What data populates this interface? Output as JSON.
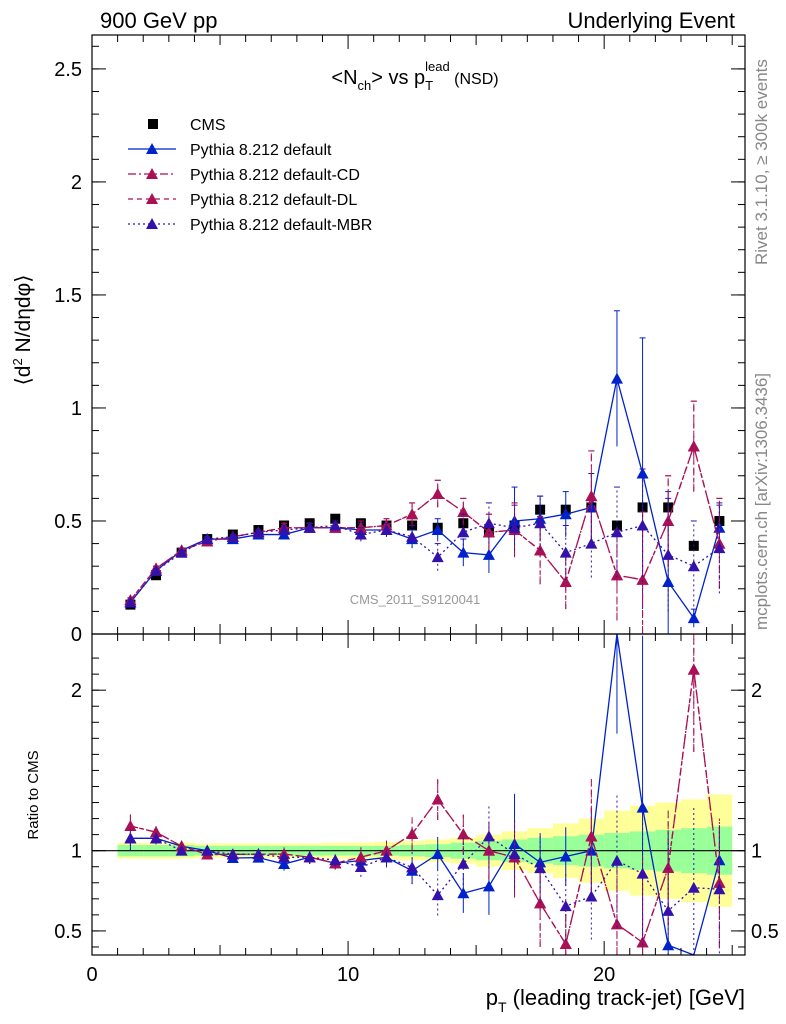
{
  "header": {
    "left": "900 GeV pp",
    "right": "Underlying Event"
  },
  "side_labels": {
    "rivet": "Rivet 3.1.10, ≥ 300k events",
    "mcplots": "mcplots.cern.ch [arXiv:1306.3436]"
  },
  "watermark": "CMS_2011_S9120041",
  "chart_data": {
    "type": "scatter",
    "title_parts": {
      "a": "<N",
      "a_sub": "ch",
      "b": "> vs p",
      "b_sub": "T",
      "b_sup": "lead",
      "c": " (NSD)"
    },
    "ylabel_parts": {
      "a": "⟨d",
      "sup": "2",
      "b": " N/dηdφ⟩"
    },
    "xlabel_parts": {
      "a": "p",
      "sub": "T",
      "b": " (leading track-jet) [GeV]"
    },
    "ratio_ylabel": "Ratio to CMS",
    "xlim": [
      0,
      25.5
    ],
    "ylim": [
      0,
      2.65
    ],
    "ratio_ylim": [
      0.35,
      2.35
    ],
    "x_ticks": [
      0,
      10,
      20
    ],
    "y_ticks": [
      0,
      0.5,
      1,
      1.5,
      2,
      2.5
    ],
    "y_tick_labels": [
      "0",
      "0.5",
      "1",
      "1.5",
      "2",
      "2.5"
    ],
    "ratio_ticks": [
      0.5,
      1,
      2
    ],
    "ratio_tick_labels": [
      "0.5",
      "1",
      "2"
    ],
    "legend_position": "top-left",
    "x": [
      1.5,
      2.5,
      3.5,
      4.5,
      5.5,
      6.5,
      7.5,
      8.5,
      9.5,
      10.5,
      11.5,
      12.5,
      13.5,
      14.5,
      15.5,
      16.5,
      17.5,
      18.5,
      19.5,
      20.5,
      21.5,
      22.5,
      23.5,
      24.5
    ],
    "data": {
      "name": "CMS",
      "values": [
        0.13,
        0.26,
        0.36,
        0.42,
        0.44,
        0.46,
        0.48,
        0.49,
        0.51,
        0.49,
        0.48,
        0.48,
        0.47,
        0.49,
        0.45,
        0.48,
        0.55,
        0.55,
        0.56,
        0.48,
        0.56,
        0.56,
        0.39,
        0.5
      ],
      "band_inner": [
        0.035,
        0.035,
        0.035,
        0.03,
        0.03,
        0.03,
        0.03,
        0.03,
        0.03,
        0.03,
        0.03,
        0.035,
        0.04,
        0.05,
        0.06,
        0.07,
        0.08,
        0.09,
        0.1,
        0.11,
        0.12,
        0.13,
        0.14,
        0.15
      ],
      "band_outer": [
        0.05,
        0.05,
        0.05,
        0.045,
        0.045,
        0.045,
        0.045,
        0.045,
        0.05,
        0.05,
        0.055,
        0.06,
        0.07,
        0.08,
        0.1,
        0.12,
        0.14,
        0.17,
        0.2,
        0.25,
        0.28,
        0.3,
        0.32,
        0.35
      ]
    },
    "series": [
      {
        "name": "Pythia 8.212 default",
        "color": "#0022cc",
        "dash": "",
        "values": [
          0.14,
          0.28,
          0.37,
          0.42,
          0.42,
          0.44,
          0.44,
          0.47,
          0.47,
          0.46,
          0.46,
          0.42,
          0.46,
          0.36,
          0.35,
          0.5,
          0.51,
          0.53,
          0.56,
          1.13,
          0.71,
          0.23,
          0.07,
          0.47
        ],
        "errors": [
          0.01,
          0.01,
          0.01,
          0.01,
          0.01,
          0.01,
          0.02,
          0.02,
          0.02,
          0.03,
          0.03,
          0.04,
          0.05,
          0.06,
          0.08,
          0.15,
          0.1,
          0.1,
          0.15,
          0.3,
          0.6,
          0.4,
          0.04,
          0.1
        ]
      },
      {
        "name": "Pythia 8.212 default-CD",
        "color": "#aa1155",
        "dash": "8,3,2,3",
        "values": [
          0.15,
          0.29,
          0.37,
          0.41,
          0.43,
          0.45,
          0.47,
          0.47,
          0.47,
          0.47,
          0.48,
          0.53,
          0.62,
          0.54,
          0.45,
          0.46,
          0.37,
          0.23,
          0.61,
          0.26,
          0.24,
          0.5,
          0.83,
          0.4
        ],
        "errors": [
          0.01,
          0.01,
          0.01,
          0.01,
          0.01,
          0.01,
          0.02,
          0.02,
          0.02,
          0.03,
          0.03,
          0.05,
          0.06,
          0.06,
          0.08,
          0.12,
          0.15,
          0.12,
          0.2,
          0.2,
          0.3,
          0.2,
          0.2,
          0.2
        ]
      },
      {
        "name": "Pythia 8.212 default-DL",
        "color": "#aa1155",
        "dash": "5,4",
        "values": [
          0.15,
          0.29,
          0.37,
          0.41,
          0.43,
          0.45,
          0.47,
          0.47,
          0.47,
          0.47,
          0.48,
          0.53,
          0.62,
          0.54,
          0.45,
          0.46,
          0.37,
          0.23,
          0.61,
          0.26,
          0.24,
          0.5,
          0.83,
          0.4
        ],
        "errors": [
          0.01,
          0.01,
          0.01,
          0.01,
          0.01,
          0.01,
          0.02,
          0.02,
          0.02,
          0.03,
          0.03,
          0.05,
          0.06,
          0.06,
          0.08,
          0.12,
          0.15,
          0.12,
          0.2,
          0.2,
          0.3,
          0.2,
          0.2,
          0.2
        ]
      },
      {
        "name": "Pythia 8.212 default-MBR",
        "color": "#3311aa",
        "dash": "2,3",
        "values": [
          0.14,
          0.28,
          0.36,
          0.42,
          0.43,
          0.45,
          0.46,
          0.47,
          0.48,
          0.44,
          0.46,
          0.43,
          0.34,
          0.45,
          0.49,
          0.47,
          0.49,
          0.36,
          0.4,
          0.45,
          0.48,
          0.35,
          0.3,
          0.38
        ],
        "errors": [
          0.01,
          0.01,
          0.01,
          0.01,
          0.01,
          0.01,
          0.02,
          0.02,
          0.02,
          0.03,
          0.03,
          0.05,
          0.06,
          0.08,
          0.09,
          0.1,
          0.12,
          0.12,
          0.15,
          0.2,
          0.25,
          0.25,
          0.2,
          0.2
        ]
      }
    ]
  }
}
